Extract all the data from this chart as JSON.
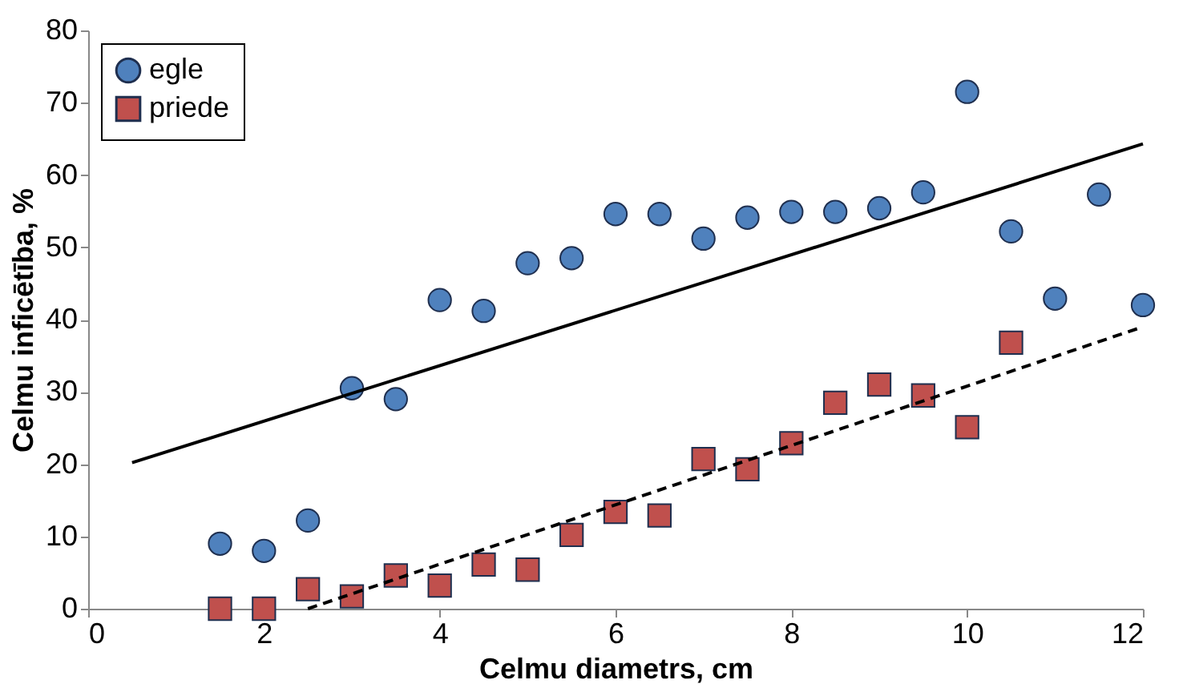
{
  "chart_data": {
    "type": "scatter",
    "xlabel": "Celmu diametrs, cm",
    "ylabel": "Celmu inficētība, %",
    "xlim": [
      0,
      12
    ],
    "xticks": [
      0,
      2,
      4,
      6,
      8,
      10,
      12
    ],
    "ylim": [
      0,
      80
    ],
    "yticks": [
      0,
      10,
      20,
      30,
      40,
      50,
      60,
      70,
      80
    ],
    "grid": false,
    "legend": "top left",
    "series": [
      {
        "name": "egle",
        "marker": "circle",
        "color": "#4f81bd",
        "x": [
          1.5,
          2,
          2.5,
          3,
          3.5,
          4,
          4.5,
          5,
          5.5,
          6,
          6.5,
          7,
          7.5,
          8,
          8.5,
          9,
          9.5,
          10,
          10.5,
          11,
          11.5,
          12
        ],
        "values": [
          9.0,
          8.0,
          12.2,
          30.5,
          29.0,
          42.7,
          41.2,
          47.8,
          48.5,
          54.6,
          54.6,
          51.2,
          54.1,
          54.9,
          54.9,
          55.4,
          57.6,
          71.5,
          52.2,
          42.9,
          57.3,
          42.0
        ]
      },
      {
        "name": "priede",
        "marker": "square",
        "color": "#c0504d",
        "x": [
          1.5,
          2,
          2.5,
          3,
          3.5,
          4,
          4.5,
          5,
          5.5,
          6,
          6.5,
          7,
          7.5,
          8,
          8.5,
          9,
          9.5,
          10,
          10.5
        ],
        "values": [
          0.0,
          0.0,
          2.7,
          1.7,
          4.6,
          3.2,
          6.1,
          5.4,
          10.2,
          13.4,
          12.9,
          20.7,
          19.3,
          22.9,
          28.5,
          31.0,
          29.5,
          25.1,
          36.8
        ]
      },
      {
        "type": "line",
        "line_style": "solid",
        "color": "#000000",
        "x": [
          0.5,
          12
        ],
        "values": [
          20.2,
          64.3
        ]
      },
      {
        "type": "line",
        "line_style": "dashed",
        "color": "#000000",
        "x": [
          2.5,
          12
        ],
        "values": [
          0.0,
          39.0
        ]
      }
    ]
  }
}
